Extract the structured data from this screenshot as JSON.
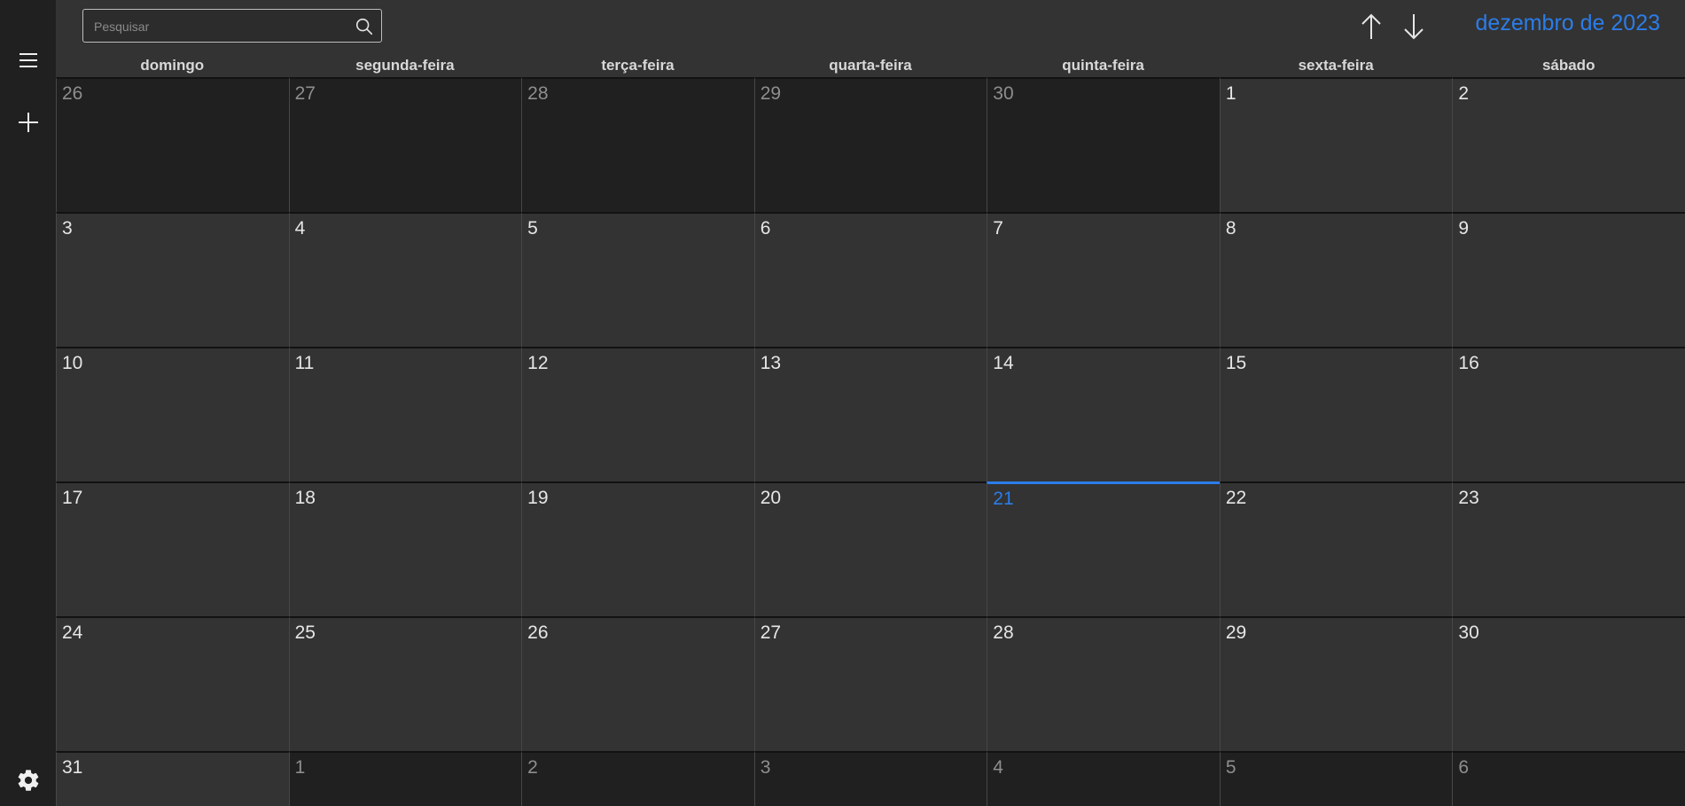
{
  "sidebar": {
    "menu_icon": "hamburger-menu-icon",
    "add_icon": "plus-icon",
    "settings_icon": "gear-icon"
  },
  "search": {
    "placeholder": "Pesquisar",
    "value": "",
    "icon": "search-icon"
  },
  "navigation": {
    "prev_icon": "arrow-up-icon",
    "next_icon": "arrow-down-icon"
  },
  "header": {
    "month_title": "dezembro de 2023"
  },
  "weekdays": [
    "domingo",
    "segunda-feira",
    "terça-feira",
    "quarta-feira",
    "quinta-feira",
    "sexta-feira",
    "sábado"
  ],
  "weeks": [
    [
      {
        "day": "26",
        "other": true
      },
      {
        "day": "27",
        "other": true
      },
      {
        "day": "28",
        "other": true
      },
      {
        "day": "29",
        "other": true
      },
      {
        "day": "30",
        "other": true
      },
      {
        "day": "1"
      },
      {
        "day": "2"
      }
    ],
    [
      {
        "day": "3"
      },
      {
        "day": "4"
      },
      {
        "day": "5"
      },
      {
        "day": "6"
      },
      {
        "day": "7"
      },
      {
        "day": "8"
      },
      {
        "day": "9"
      }
    ],
    [
      {
        "day": "10"
      },
      {
        "day": "11"
      },
      {
        "day": "12"
      },
      {
        "day": "13"
      },
      {
        "day": "14"
      },
      {
        "day": "15"
      },
      {
        "day": "16"
      }
    ],
    [
      {
        "day": "17"
      },
      {
        "day": "18"
      },
      {
        "day": "19"
      },
      {
        "day": "20"
      },
      {
        "day": "21",
        "today": true
      },
      {
        "day": "22"
      },
      {
        "day": "23"
      }
    ],
    [
      {
        "day": "24"
      },
      {
        "day": "25"
      },
      {
        "day": "26"
      },
      {
        "day": "27"
      },
      {
        "day": "28"
      },
      {
        "day": "29"
      },
      {
        "day": "30"
      }
    ],
    [
      {
        "day": "31"
      },
      {
        "day": "1",
        "other": true
      },
      {
        "day": "2",
        "other": true
      },
      {
        "day": "3",
        "other": true
      },
      {
        "day": "4",
        "other": true
      },
      {
        "day": "5",
        "other": true
      },
      {
        "day": "6",
        "other": true
      }
    ]
  ],
  "colors": {
    "accent": "#2b7de9",
    "background": "#333333",
    "sidebar": "#202020",
    "other_month": "#202020"
  }
}
